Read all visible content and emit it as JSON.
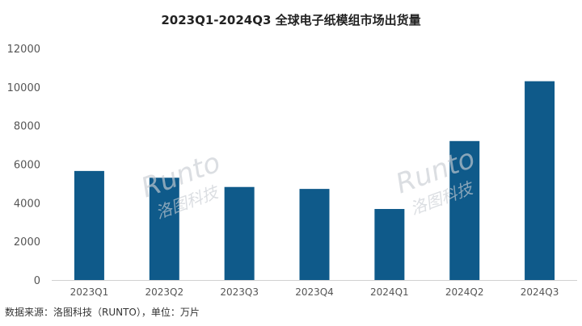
{
  "chart_data": {
    "type": "bar",
    "title": "2023Q1-2024Q3 全球电子纸模组市场出货量",
    "categories": [
      "2023Q1",
      "2023Q2",
      "2023Q3",
      "2023Q4",
      "2024Q1",
      "2024Q2",
      "2024Q3"
    ],
    "values": [
      5650,
      5300,
      4820,
      4720,
      3680,
      7200,
      10300
    ],
    "ylim": [
      0,
      12000
    ],
    "yticks": [
      0,
      2000,
      4000,
      6000,
      8000,
      10000,
      12000
    ],
    "grid": false,
    "legend": "none",
    "bar_color": "#0f5a8a"
  },
  "source_note": "数据来源：洛图科技（RUNTO），单位：万片",
  "watermark": {
    "brand": "Runto",
    "name": "洛图科技"
  }
}
